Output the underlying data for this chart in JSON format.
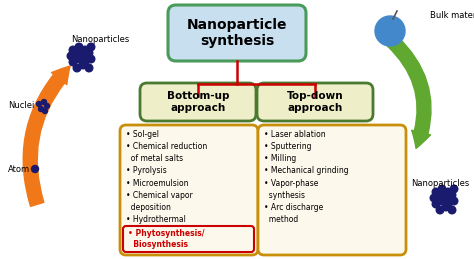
{
  "title": "Nanoparticle\nsynthesis",
  "bottom_up_label": "Bottom-up\napproach",
  "top_down_label": "Top-down\napproach",
  "bottom_up_items": "• Sol-gel\n• Chemical reduction\n  of metal salts\n• Pyrolysis\n• Microemulsion\n• Chemical vapor\n  deposition\n• Hydrothermal",
  "bottom_up_highlight": "• Phytosynthesis/\n  Biosynthesis",
  "top_down_items": "• Laser ablation\n• Sputtering\n• Milling\n• Mechanical grinding\n• Vapor-phase\n  synthesis\n• Arc discharge\n  method",
  "left_labels": [
    "Nanoparticles",
    "Nuclei",
    "Atom"
  ],
  "right_labels": [
    "Bulk material",
    "Nanoparticles"
  ],
  "bg_color": "#ffffff",
  "title_box_bg": "#c8dff0",
  "title_box_border": "#4a9a5a",
  "approach_box_bg": "#eeeec8",
  "approach_box_border": "#4a7a30",
  "methods_box_bg": "#fdf8ec",
  "methods_box_border": "#c8900a",
  "connector_color": "#cc0000",
  "highlight_box_border": "#cc0000",
  "highlight_text_color": "#cc0000",
  "arrow_left_color": "#f07818",
  "arrow_right_color": "#60a830",
  "dot_color": "#1a1a6e",
  "bulk_color": "#4488cc",
  "title_fontsize": 10,
  "approach_fontsize": 7.5,
  "methods_fontsize": 5.5,
  "label_fontsize": 6.0
}
